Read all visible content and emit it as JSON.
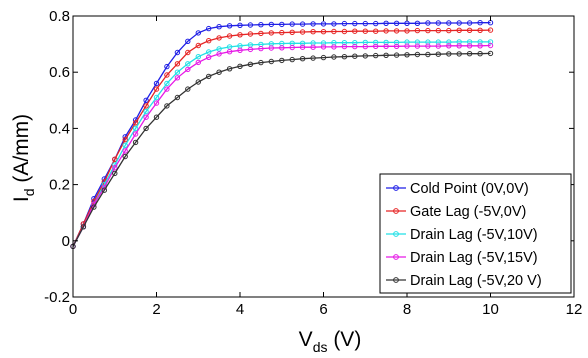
{
  "chart_data": {
    "type": "line",
    "title": "",
    "xlabel": {
      "main": "V",
      "sub": "ds",
      "unit": " (V)"
    },
    "ylabel": {
      "main": "I",
      "sub": "d",
      "unit": " (A/mm)"
    },
    "xlim": [
      0,
      12
    ],
    "ylim": [
      -0.2,
      0.8
    ],
    "xticks": [
      "0",
      "2",
      "4",
      "6",
      "8",
      "10",
      "12"
    ],
    "yticks": [
      "-0.2",
      "0",
      "0.2",
      "0.4",
      "0.6",
      "0.8"
    ],
    "grid": false,
    "legend_position": "bottom-right",
    "x": [
      0,
      0.25,
      0.5,
      0.75,
      1.0,
      1.25,
      1.5,
      1.75,
      2.0,
      2.25,
      2.5,
      2.75,
      3.0,
      3.25,
      3.5,
      3.75,
      4.0,
      4.25,
      4.5,
      4.75,
      5.0,
      5.25,
      5.5,
      5.75,
      6.0,
      6.25,
      6.5,
      6.75,
      7.0,
      7.25,
      7.5,
      7.75,
      8.0,
      8.25,
      8.5,
      8.75,
      9.0,
      9.25,
      9.5,
      9.75,
      10.0
    ],
    "series": [
      {
        "name": "Cold Point (0V,0V)",
        "color": "#1f1fe6",
        "values": [
          -0.02,
          0.06,
          0.15,
          0.22,
          0.29,
          0.37,
          0.43,
          0.5,
          0.56,
          0.62,
          0.67,
          0.71,
          0.74,
          0.755,
          0.762,
          0.765,
          0.767,
          0.768,
          0.769,
          0.77,
          0.77,
          0.771,
          0.771,
          0.772,
          0.772,
          0.772,
          0.773,
          0.773,
          0.773,
          0.773,
          0.774,
          0.774,
          0.774,
          0.774,
          0.775,
          0.775,
          0.775,
          0.775,
          0.775,
          0.776,
          0.776
        ]
      },
      {
        "name": "Gate Lag (-5V,0V)",
        "color": "#e62424",
        "values": [
          -0.02,
          0.06,
          0.14,
          0.21,
          0.29,
          0.36,
          0.42,
          0.48,
          0.54,
          0.59,
          0.63,
          0.67,
          0.695,
          0.712,
          0.722,
          0.729,
          0.733,
          0.736,
          0.738,
          0.74,
          0.741,
          0.742,
          0.743,
          0.744,
          0.744,
          0.745,
          0.745,
          0.746,
          0.746,
          0.746,
          0.747,
          0.747,
          0.747,
          0.748,
          0.748,
          0.748,
          0.748,
          0.749,
          0.749,
          0.749,
          0.75
        ]
      },
      {
        "name": "Drain Lag (-5V,10V)",
        "color": "#22e0e6",
        "values": [
          -0.02,
          0.05,
          0.13,
          0.2,
          0.27,
          0.34,
          0.4,
          0.46,
          0.51,
          0.56,
          0.6,
          0.63,
          0.655,
          0.672,
          0.683,
          0.69,
          0.694,
          0.697,
          0.699,
          0.701,
          0.702,
          0.703,
          0.703,
          0.704,
          0.704,
          0.705,
          0.705,
          0.705,
          0.706,
          0.706,
          0.706,
          0.706,
          0.707,
          0.707,
          0.707,
          0.707,
          0.707,
          0.708,
          0.708,
          0.708,
          0.708
        ]
      },
      {
        "name": "Drain Lag (-5V,15V)",
        "color": "#e61ae6",
        "values": [
          -0.02,
          0.05,
          0.13,
          0.19,
          0.26,
          0.32,
          0.38,
          0.44,
          0.49,
          0.54,
          0.58,
          0.61,
          0.635,
          0.653,
          0.665,
          0.673,
          0.678,
          0.681,
          0.684,
          0.686,
          0.687,
          0.688,
          0.689,
          0.689,
          0.69,
          0.69,
          0.691,
          0.691,
          0.691,
          0.692,
          0.692,
          0.692,
          0.693,
          0.693,
          0.693,
          0.693,
          0.694,
          0.694,
          0.694,
          0.694,
          0.695
        ]
      },
      {
        "name": "Drain Lag (-5V,20 V)",
        "color": "#333333",
        "values": [
          -0.02,
          0.05,
          0.12,
          0.18,
          0.24,
          0.3,
          0.35,
          0.4,
          0.44,
          0.48,
          0.51,
          0.54,
          0.565,
          0.585,
          0.6,
          0.612,
          0.621,
          0.628,
          0.634,
          0.638,
          0.642,
          0.645,
          0.648,
          0.65,
          0.652,
          0.654,
          0.655,
          0.657,
          0.658,
          0.659,
          0.66,
          0.661,
          0.662,
          0.663,
          0.663,
          0.664,
          0.665,
          0.665,
          0.666,
          0.666,
          0.667
        ]
      }
    ]
  }
}
